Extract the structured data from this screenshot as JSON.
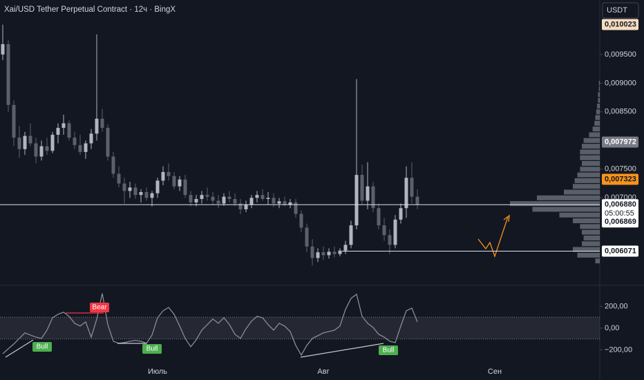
{
  "chart_data": {
    "type": "candlestick",
    "title": "Xai/USD Tether Perpetual Contract · 12ч · BingX",
    "currency": "USDT",
    "up_color": "#b2b5be",
    "down_color": "#5d606b",
    "categories": [
      null,
      null,
      null,
      null,
      null,
      null,
      null,
      null,
      null,
      null,
      null,
      null,
      null,
      null,
      null,
      null,
      null,
      null,
      null,
      null,
      null,
      null,
      null,
      null,
      null,
      null,
      null,
      null,
      "Июль",
      null,
      null,
      null,
      null,
      null,
      null,
      null,
      null,
      null,
      null,
      null,
      null,
      null,
      null,
      null,
      null,
      null,
      null,
      null,
      null,
      null,
      null,
      null,
      null,
      null,
      null,
      null,
      null,
      null,
      "Авг",
      null,
      null,
      null,
      null,
      null,
      null,
      null,
      null,
      null,
      null,
      null,
      null,
      null,
      null,
      null,
      null,
      null,
      null,
      null,
      null,
      null,
      null,
      null,
      null,
      null,
      null,
      null,
      null,
      null,
      null,
      "Сен"
    ],
    "ohlc": [
      [
        0.0095,
        0.01002,
        0.0094,
        0.00968
      ],
      [
        0.00968,
        0.00975,
        0.0085,
        0.00862
      ],
      [
        0.00862,
        0.0087,
        0.0079,
        0.00805
      ],
      [
        0.00805,
        0.00825,
        0.0077,
        0.00785
      ],
      [
        0.00785,
        0.00815,
        0.00775,
        0.00808
      ],
      [
        0.00808,
        0.0083,
        0.0079,
        0.00795
      ],
      [
        0.00795,
        0.00805,
        0.0076,
        0.00772
      ],
      [
        0.00772,
        0.008,
        0.00765,
        0.0079
      ],
      [
        0.0079,
        0.00805,
        0.00775,
        0.00782
      ],
      [
        0.00782,
        0.00815,
        0.00778,
        0.0081
      ],
      [
        0.0081,
        0.0083,
        0.00795,
        0.00822
      ],
      [
        0.00822,
        0.00845,
        0.0081,
        0.0083
      ],
      [
        0.0083,
        0.00835,
        0.008,
        0.00805
      ],
      [
        0.00805,
        0.00815,
        0.00785,
        0.00792
      ],
      [
        0.00792,
        0.0081,
        0.00775,
        0.0078
      ],
      [
        0.0078,
        0.008,
        0.00768,
        0.00795
      ],
      [
        0.00795,
        0.0082,
        0.00785,
        0.00812
      ],
      [
        0.00812,
        0.00985,
        0.008,
        0.00838
      ],
      [
        0.00838,
        0.00855,
        0.00815,
        0.00822
      ],
      [
        0.00822,
        0.00828,
        0.00765,
        0.00772
      ],
      [
        0.00772,
        0.0078,
        0.00735,
        0.00742
      ],
      [
        0.00742,
        0.00755,
        0.00718,
        0.00725
      ],
      [
        0.00725,
        0.00735,
        0.0069,
        0.00712
      ],
      [
        0.00712,
        0.00728,
        0.007,
        0.00718
      ],
      [
        0.00718,
        0.00725,
        0.00698,
        0.00705
      ],
      [
        0.00705,
        0.00715,
        0.00692,
        0.0071
      ],
      [
        0.0071,
        0.00718,
        0.00695,
        0.007
      ],
      [
        0.007,
        0.00712,
        0.00685,
        0.00708
      ],
      [
        0.00708,
        0.00735,
        0.007,
        0.0073
      ],
      [
        0.0073,
        0.00755,
        0.00722,
        0.00745
      ],
      [
        0.00745,
        0.0076,
        0.0073,
        0.00738
      ],
      [
        0.00738,
        0.00745,
        0.00715,
        0.0072
      ],
      [
        0.0072,
        0.00738,
        0.00712,
        0.00732
      ],
      [
        0.00732,
        0.0074,
        0.007,
        0.00705
      ],
      [
        0.00705,
        0.00712,
        0.00685,
        0.00692
      ],
      [
        0.00692,
        0.00705,
        0.00685,
        0.00698
      ],
      [
        0.00698,
        0.00712,
        0.0069,
        0.00705
      ],
      [
        0.00705,
        0.00718,
        0.00695,
        0.00702
      ],
      [
        0.00702,
        0.0071,
        0.00688,
        0.00695
      ],
      [
        0.00695,
        0.00705,
        0.00682,
        0.0069
      ],
      [
        0.0069,
        0.00708,
        0.00686,
        0.00702
      ],
      [
        0.00702,
        0.00712,
        0.00692,
        0.00698
      ],
      [
        0.00698,
        0.00708,
        0.00685,
        0.0069
      ],
      [
        0.0069,
        0.00698,
        0.00672,
        0.0068
      ],
      [
        0.0068,
        0.00695,
        0.00675,
        0.00688
      ],
      [
        0.00688,
        0.00705,
        0.00682,
        0.007
      ],
      [
        0.007,
        0.00712,
        0.00692,
        0.00705
      ],
      [
        0.00705,
        0.00715,
        0.00695,
        0.00698
      ],
      [
        0.00698,
        0.0071,
        0.00688,
        0.007
      ],
      [
        0.007,
        0.00708,
        0.00684,
        0.0069
      ],
      [
        0.0069,
        0.007,
        0.00682,
        0.00694
      ],
      [
        0.00694,
        0.00702,
        0.00685,
        0.00688
      ],
      [
        0.00688,
        0.00698,
        0.00682,
        0.00692
      ],
      [
        0.00692,
        0.00698,
        0.00665,
        0.00672
      ],
      [
        0.00672,
        0.00678,
        0.0064,
        0.00648
      ],
      [
        0.00648,
        0.00655,
        0.00605,
        0.00615
      ],
      [
        0.00615,
        0.00628,
        0.00582,
        0.00595
      ],
      [
        0.00595,
        0.00612,
        0.00588,
        0.00605
      ],
      [
        0.00605,
        0.00615,
        0.00592,
        0.006
      ],
      [
        0.006,
        0.00612,
        0.00594,
        0.00606
      ],
      [
        0.00606,
        0.00615,
        0.00596,
        0.00602
      ],
      [
        0.00602,
        0.00612,
        0.00598,
        0.00608
      ],
      [
        0.00608,
        0.00625,
        0.00602,
        0.00618
      ],
      [
        0.00618,
        0.0066,
        0.00612,
        0.00652
      ],
      [
        0.00652,
        0.00907,
        0.00645,
        0.0074
      ],
      [
        0.0074,
        0.00758,
        0.00688,
        0.00695
      ],
      [
        0.00695,
        0.00762,
        0.0068,
        0.0072
      ],
      [
        0.0072,
        0.00728,
        0.00675,
        0.00682
      ],
      [
        0.00682,
        0.0069,
        0.00645,
        0.00652
      ],
      [
        0.00652,
        0.00665,
        0.00625,
        0.00635
      ],
      [
        0.00635,
        0.00645,
        0.00602,
        0.00618
      ],
      [
        0.00618,
        0.0067,
        0.00612,
        0.00662
      ],
      [
        0.00662,
        0.0069,
        0.00655,
        0.00682
      ],
      [
        0.00682,
        0.00755,
        0.00665,
        0.00735
      ],
      [
        0.00735,
        0.00762,
        0.0069,
        0.00702
      ],
      [
        0.00702,
        0.00715,
        0.0068,
        0.00688
      ]
    ],
    "ylim": [
      0.00551,
      0.01045
    ],
    "yticks": [
      {
        "value": 0.0095,
        "label": "0,009500"
      },
      {
        "value": 0.009,
        "label": "0,009000"
      },
      {
        "value": 0.0085,
        "label": "0,008500"
      },
      {
        "value": 0.0075,
        "label": "0,007500"
      },
      {
        "value": 0.007,
        "label": "0,007000"
      }
    ],
    "price_labels": [
      {
        "value": 0.010023,
        "label": "0,010023",
        "color": "#f5dcbf"
      },
      {
        "value": 0.007972,
        "label": "0,007972",
        "color": "#787b86"
      },
      {
        "value": 0.007323,
        "label": "0,007323",
        "color": "#f7931a"
      },
      {
        "value": 0.00688,
        "label": "0,006880",
        "color": "#ffffff"
      },
      {
        "value": 0.006869,
        "label": "0,006869",
        "color": "#ffffff"
      },
      {
        "value": 0.006071,
        "label": "0,006071",
        "color": "#ffffff"
      }
    ],
    "countdown": "05:00:55",
    "volume_profile": {
      "prices": [
        0.0059,
        0.006,
        0.0061,
        0.0062,
        0.0063,
        0.0064,
        0.0065,
        0.0066,
        0.0067,
        0.0068,
        0.0069,
        0.007,
        0.0071,
        0.0072,
        0.0073,
        0.0074,
        0.0075,
        0.0076,
        0.0077,
        0.0078,
        0.0079,
        0.008,
        0.0081,
        0.0082,
        0.0083,
        0.0084,
        0.0085,
        0.0086,
        0.0087,
        0.0088,
        0.0089,
        0.009
      ],
      "values": [
        5,
        25,
        30,
        20,
        18,
        20,
        22,
        30,
        45,
        75,
        100,
        70,
        40,
        30,
        28,
        25,
        22,
        20,
        22,
        22,
        20,
        18,
        12,
        8,
        6,
        5,
        4,
        3,
        2,
        2,
        1,
        1
      ],
      "color": "rgba(178,181,190,0.45)"
    },
    "indicator": {
      "type": "line",
      "color": "#8a8d96",
      "values": [
        -235,
        -190,
        -146,
        -95,
        -44,
        -64,
        -83,
        -95,
        -19,
        95,
        127,
        146,
        108,
        44,
        19,
        57,
        -83,
        83,
        318,
        32,
        -121,
        -140,
        -133,
        -121,
        -114,
        -121,
        -140,
        -64,
        95,
        159,
        190,
        127,
        19,
        -95,
        -171,
        -108,
        -19,
        32,
        83,
        44,
        95,
        32,
        -57,
        -95,
        -6,
        64,
        108,
        95,
        32,
        -19,
        44,
        19,
        -32,
        -159,
        -248,
        -159,
        -95,
        -70,
        -44,
        -32,
        -19,
        19,
        171,
        273,
        311,
        108,
        44,
        6,
        -57,
        -83,
        -121,
        -133,
        19,
        159,
        184,
        57
      ],
      "ylim": [
        -350,
        380
      ],
      "yticks": [
        {
          "value": 200,
          "label": "200,00"
        },
        {
          "value": 0,
          "label": "0,00"
        },
        {
          "value": -200,
          "label": "−200,00"
        }
      ],
      "band": [
        -100,
        100
      ],
      "signals": [
        "Bull",
        "Bear",
        "Bull",
        "Bull"
      ]
    }
  }
}
